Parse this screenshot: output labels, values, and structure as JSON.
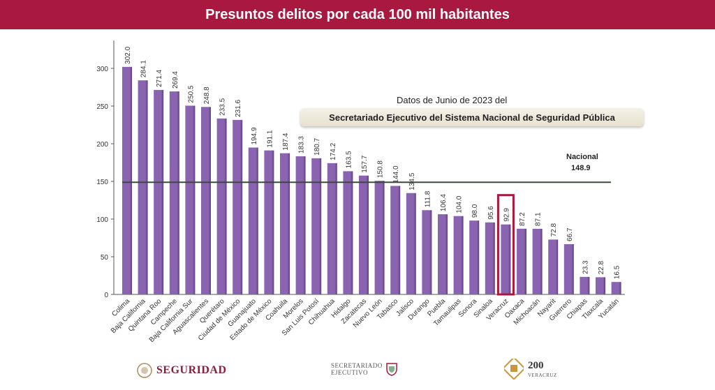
{
  "header": {
    "title": "Presuntos delitos por cada 100 mil habitantes"
  },
  "source": {
    "line1": "Datos  de Junio de 2023 del",
    "line2": "Secretariado Ejecutivo del Sistema Nacional de Seguridad Pública"
  },
  "reference": {
    "name": "Nacional",
    "value_label": "148.9"
  },
  "footer": {
    "logo1": "SEGURIDAD",
    "logo2_line1": "SECRETARIADO",
    "logo2_line2": "EJECUTIVO",
    "logo3": "200",
    "logo3_sub": "VERACRUZ"
  },
  "colors": {
    "header": "#a8183f",
    "bar": "#8a64b0",
    "bar_dark": "#5f3f86",
    "highlight": "#a8183f",
    "reference_line": "#3a4a3a"
  },
  "chart_data": {
    "type": "bar",
    "categories": [
      "Colima",
      "Baja California",
      "Quintana Roo",
      "Campeche",
      "Baja California Sur",
      "Aguascalientes",
      "Querétaro",
      "Ciudad de México",
      "Guanajuato",
      "Estado de México",
      "Coahuila",
      "Morelos",
      "San Luis Potosí",
      "Chihuahua",
      "Hidalgo",
      "Zacatecas",
      "Nuevo León",
      "Tabasco",
      "Jalisco",
      "Durango",
      "Puebla",
      "Tamaulipas",
      "Sonora",
      "Sinaloa",
      "Veracruz",
      "Oaxaca",
      "Michoacán",
      "Nayarit",
      "Guerrero",
      "Chiapas",
      "Tlaxcala",
      "Yucatán"
    ],
    "values": [
      302.0,
      284.1,
      271.4,
      269.4,
      250.5,
      248.8,
      233.5,
      231.6,
      194.9,
      191.1,
      187.4,
      183.3,
      180.7,
      174.2,
      163.5,
      157.7,
      150.8,
      144.0,
      134.5,
      111.8,
      106.4,
      104.0,
      98.0,
      95.6,
      92.9,
      87.2,
      87.1,
      72.8,
      66.7,
      23.3,
      22.8,
      16.5
    ],
    "value_labels": [
      "302.0",
      "284.1",
      "271.4",
      "269.4",
      "250.5",
      "248.8",
      "233.5",
      "231.6",
      "194.9",
      "191.1",
      "187.4",
      "183.3",
      "180.7",
      "174.2",
      "163.5",
      "157.7",
      "150.8",
      "144.0",
      "134.5",
      "111.8",
      "106.4",
      "104.0",
      "98.0",
      "95.6",
      "92.9",
      "87.2",
      "87.1",
      "72.8",
      "66.7",
      "23.3",
      "22.8",
      "16.5"
    ],
    "highlight_category": "Veracruz",
    "reference_value": 148.9,
    "yticks": [
      0,
      50,
      100,
      150,
      200,
      250,
      300
    ],
    "ylim": [
      0,
      320
    ],
    "title": "Presuntos delitos por cada 100 mil habitantes",
    "xlabel": "",
    "ylabel": "",
    "grid": false,
    "legend": "none"
  }
}
